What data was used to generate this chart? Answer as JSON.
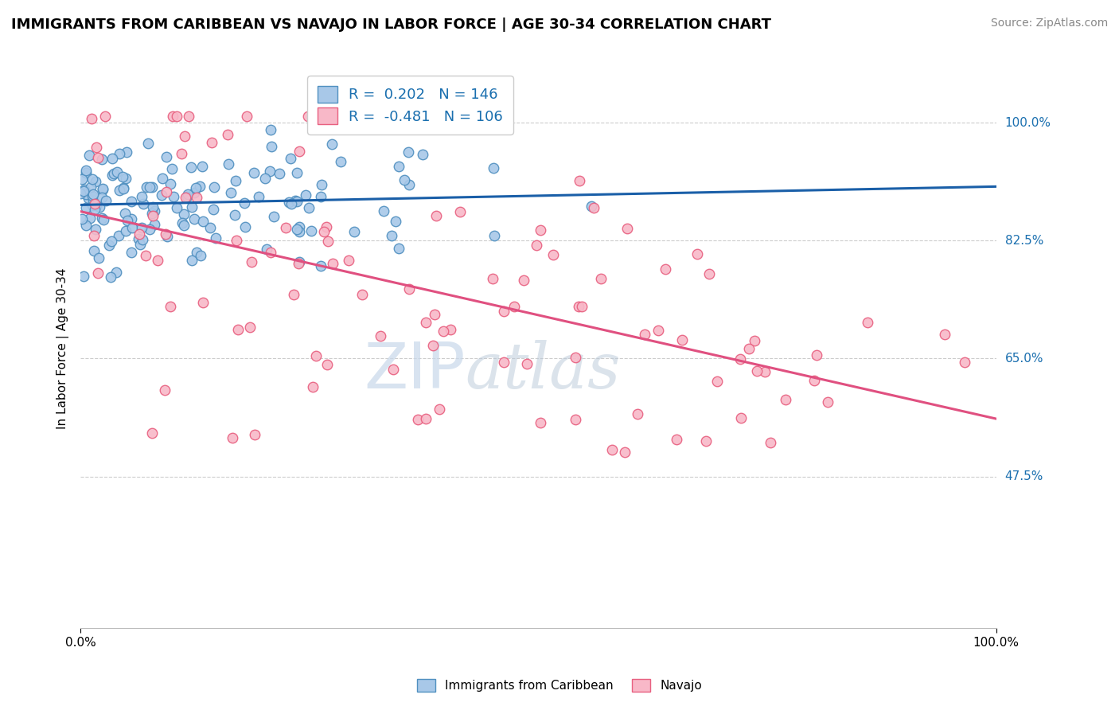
{
  "title": "IMMIGRANTS FROM CARIBBEAN VS NAVAJO IN LABOR FORCE | AGE 30-34 CORRELATION CHART",
  "source": "Source: ZipAtlas.com",
  "ylabel": "In Labor Force | Age 30-34",
  "xlabel": "",
  "blue_R": 0.202,
  "blue_N": 146,
  "pink_R": -0.481,
  "pink_N": 106,
  "blue_color": "#a8c8e8",
  "blue_edge": "#5090c0",
  "pink_color": "#f8b8c8",
  "pink_edge": "#e86080",
  "blue_line_color": "#1a5fa8",
  "pink_line_color": "#e05080",
  "legend_color": "#1a6faf",
  "background_color": "#ffffff",
  "grid_color": "#cccccc",
  "watermark_color": "#c8d8ea",
  "xmin": 0.0,
  "xmax": 1.0,
  "ymin": 0.25,
  "ymax": 1.08,
  "yticks": [
    0.475,
    0.65,
    0.825,
    1.0
  ],
  "ytick_labels": [
    "47.5%",
    "65.0%",
    "82.5%",
    "100.0%"
  ],
  "xtick_labels": [
    "0.0%",
    "100.0%"
  ],
  "title_fontsize": 13,
  "source_fontsize": 10,
  "axis_fontsize": 11,
  "legend_fontsize": 13,
  "marker_size": 9
}
